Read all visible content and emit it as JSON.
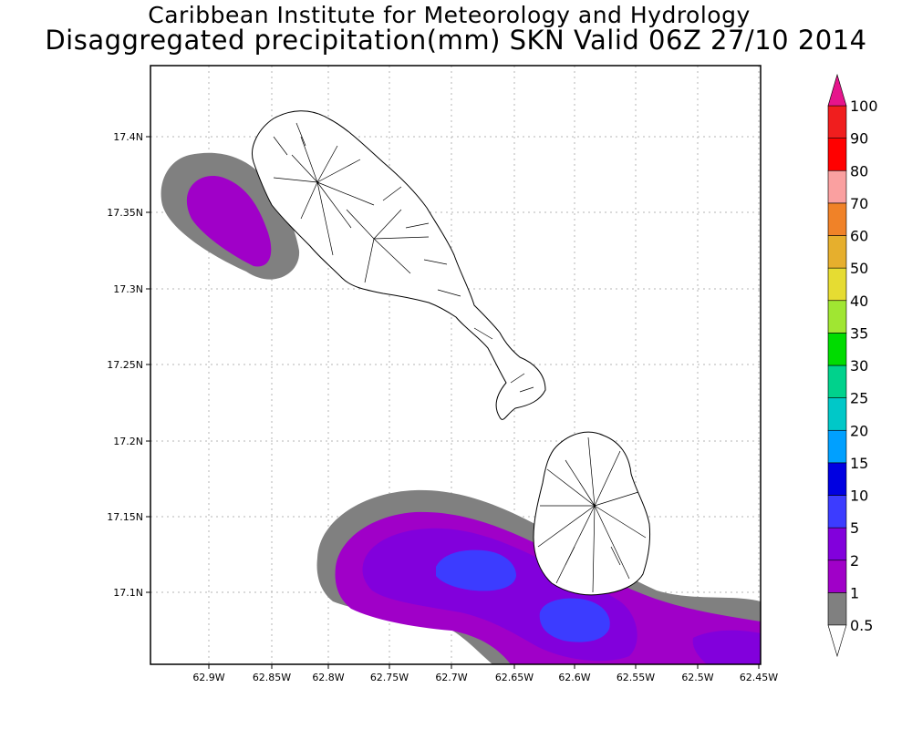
{
  "map": {
    "title_line1": "Caribbean Institute for Meteorology and Hydrology",
    "title_line2": "Disaggregated precipitation(mm) SKN Valid 06Z 27/10 2014",
    "lon_ticks": [
      "62.9W",
      "62.85W",
      "62.8W",
      "62.75W",
      "62.7W",
      "62.65W",
      "62.6W",
      "62.55W",
      "62.5W",
      "62.45W"
    ],
    "lat_ticks": [
      "17.4N",
      "17.35N",
      "17.3N",
      "17.25N",
      "17.2N",
      "17.15N",
      "17.1N"
    ],
    "grid": true
  },
  "legend": {
    "levels": [
      {
        "label": "0.5",
        "color": "#808080"
      },
      {
        "label": "1",
        "color": "#a000c8"
      },
      {
        "label": "2",
        "color": "#8200dc"
      },
      {
        "label": "5",
        "color": "#3c3cff"
      },
      {
        "label": "10",
        "color": "#0000e1"
      },
      {
        "label": "15",
        "color": "#00a0ff"
      },
      {
        "label": "20",
        "color": "#00c8c8"
      },
      {
        "label": "25",
        "color": "#00d28c"
      },
      {
        "label": "30",
        "color": "#00dc00"
      },
      {
        "label": "35",
        "color": "#a0e632"
      },
      {
        "label": "40",
        "color": "#e6dc32"
      },
      {
        "label": "50",
        "color": "#e6af2d"
      },
      {
        "label": "60",
        "color": "#f08228"
      },
      {
        "label": "70",
        "color": "#faa0a0"
      },
      {
        "label": "80",
        "color": "#ff0000"
      },
      {
        "label": "90",
        "color": "#f01e1e"
      },
      {
        "label": "100",
        "color": "#f03c3c"
      }
    ],
    "top_arrow_color": "#e6148c",
    "bottom_arrow_color": "#ffffff"
  }
}
